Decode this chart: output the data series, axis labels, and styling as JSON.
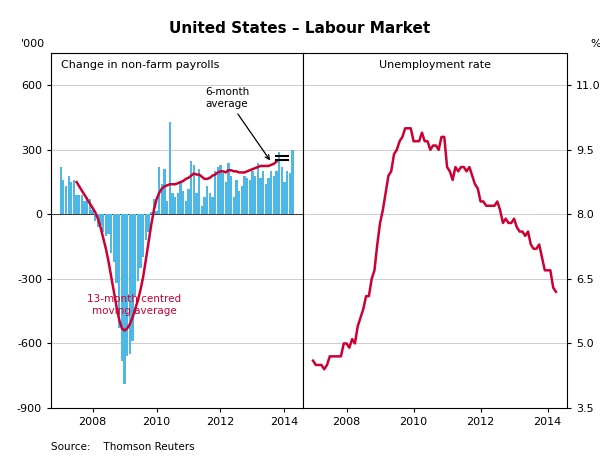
{
  "title": "United States – Labour Market",
  "left_panel_title": "Change in non-farm payrolls",
  "right_panel_title": "Unemployment rate",
  "left_ylabel": "'000",
  "right_ylabel": "%",
  "left_ylim": [
    -900,
    750
  ],
  "right_ylim": [
    3.5,
    11.75
  ],
  "left_yticks": [
    -900,
    -600,
    -300,
    0,
    300,
    600
  ],
  "right_yticks": [
    3.5,
    5.0,
    6.5,
    8.0,
    9.5,
    11.0
  ],
  "left_ytick_labels": [
    "-900",
    "-600",
    "-300",
    "0",
    "300",
    "600"
  ],
  "right_ytick_labels": [
    "3.5",
    "5.0",
    "6.5",
    "8.0",
    "9.5",
    "11.0"
  ],
  "source": "Source:    Thomson Reuters",
  "bar_color": "#4db8e8",
  "ma_color": "#cc0033",
  "background_color": "#ffffff",
  "grid_color": "#bbbbbb",
  "nfp_dates_monthly": [
    2007.0,
    2007.083,
    2007.167,
    2007.25,
    2007.333,
    2007.417,
    2007.5,
    2007.583,
    2007.667,
    2007.75,
    2007.833,
    2007.917,
    2008.0,
    2008.083,
    2008.167,
    2008.25,
    2008.333,
    2008.417,
    2008.5,
    2008.583,
    2008.667,
    2008.75,
    2008.833,
    2008.917,
    2009.0,
    2009.083,
    2009.167,
    2009.25,
    2009.333,
    2009.417,
    2009.5,
    2009.583,
    2009.667,
    2009.75,
    2009.833,
    2009.917,
    2010.0,
    2010.083,
    2010.167,
    2010.25,
    2010.333,
    2010.417,
    2010.5,
    2010.583,
    2010.667,
    2010.75,
    2010.833,
    2010.917,
    2011.0,
    2011.083,
    2011.167,
    2011.25,
    2011.333,
    2011.417,
    2011.5,
    2011.583,
    2011.667,
    2011.75,
    2011.833,
    2011.917,
    2012.0,
    2012.083,
    2012.167,
    2012.25,
    2012.333,
    2012.417,
    2012.5,
    2012.583,
    2012.667,
    2012.75,
    2012.833,
    2012.917,
    2013.0,
    2013.083,
    2013.167,
    2013.25,
    2013.333,
    2013.417,
    2013.5,
    2013.583,
    2013.667,
    2013.75,
    2013.833,
    2013.917,
    2014.0,
    2014.083,
    2014.167,
    2014.25
  ],
  "nfp_values": [
    220,
    160,
    130,
    180,
    150,
    160,
    90,
    90,
    90,
    60,
    80,
    70,
    20,
    -30,
    -60,
    -50,
    -80,
    -100,
    -90,
    -180,
    -220,
    -320,
    -530,
    -680,
    -790,
    -660,
    -650,
    -590,
    -380,
    -310,
    -250,
    -200,
    -120,
    -80,
    10,
    70,
    16,
    220,
    140,
    210,
    60,
    430,
    100,
    80,
    100,
    150,
    110,
    60,
    120,
    250,
    230,
    100,
    210,
    40,
    80,
    130,
    100,
    80,
    200,
    220,
    230,
    190,
    150,
    240,
    180,
    80,
    160,
    110,
    130,
    180,
    170,
    160,
    200,
    180,
    240,
    170,
    200,
    140,
    170,
    200,
    180,
    200,
    290,
    220,
    150,
    200,
    190,
    300
  ],
  "ma13_dates": [
    2007.5,
    2007.583,
    2007.667,
    2007.75,
    2007.833,
    2007.917,
    2008.0,
    2008.083,
    2008.167,
    2008.25,
    2008.333,
    2008.417,
    2008.5,
    2008.583,
    2008.667,
    2008.75,
    2008.833,
    2008.917,
    2009.0,
    2009.083,
    2009.167,
    2009.25,
    2009.333,
    2009.417,
    2009.5,
    2009.583,
    2009.667,
    2009.75,
    2009.833,
    2009.917,
    2010.0,
    2010.083,
    2010.167,
    2010.25,
    2010.333,
    2010.417,
    2010.5,
    2010.583,
    2010.667,
    2010.75,
    2010.833,
    2010.917,
    2011.0,
    2011.083,
    2011.167,
    2011.25,
    2011.333,
    2011.417,
    2011.5,
    2011.583,
    2011.667,
    2011.75,
    2011.833,
    2011.917,
    2012.0,
    2012.083,
    2012.167,
    2012.25,
    2012.333,
    2012.417,
    2012.5,
    2012.583,
    2012.667,
    2012.75,
    2012.833,
    2012.917,
    2013.0,
    2013.083,
    2013.167,
    2013.25,
    2013.333,
    2013.417,
    2013.5,
    2013.583,
    2013.667,
    2013.75
  ],
  "ma13_values": [
    150,
    130,
    110,
    90,
    70,
    50,
    30,
    10,
    -20,
    -60,
    -110,
    -160,
    -220,
    -290,
    -360,
    -430,
    -490,
    -530,
    -540,
    -530,
    -510,
    -480,
    -440,
    -400,
    -350,
    -290,
    -210,
    -130,
    -50,
    20,
    70,
    100,
    120,
    130,
    135,
    140,
    140,
    140,
    145,
    150,
    155,
    165,
    170,
    180,
    190,
    185,
    185,
    175,
    165,
    165,
    170,
    180,
    185,
    195,
    200,
    200,
    195,
    205,
    205,
    200,
    200,
    195,
    195,
    195,
    200,
    205,
    210,
    215,
    220,
    225,
    225,
    225,
    225,
    230,
    235,
    245
  ],
  "unemp_dates": [
    2007.0,
    2007.083,
    2007.167,
    2007.25,
    2007.333,
    2007.417,
    2007.5,
    2007.583,
    2007.667,
    2007.75,
    2007.833,
    2007.917,
    2008.0,
    2008.083,
    2008.167,
    2008.25,
    2008.333,
    2008.417,
    2008.5,
    2008.583,
    2008.667,
    2008.75,
    2008.833,
    2008.917,
    2009.0,
    2009.083,
    2009.167,
    2009.25,
    2009.333,
    2009.417,
    2009.5,
    2009.583,
    2009.667,
    2009.75,
    2009.833,
    2009.917,
    2010.0,
    2010.083,
    2010.167,
    2010.25,
    2010.333,
    2010.417,
    2010.5,
    2010.583,
    2010.667,
    2010.75,
    2010.833,
    2010.917,
    2011.0,
    2011.083,
    2011.167,
    2011.25,
    2011.333,
    2011.417,
    2011.5,
    2011.583,
    2011.667,
    2011.75,
    2011.833,
    2011.917,
    2012.0,
    2012.083,
    2012.167,
    2012.25,
    2012.333,
    2012.417,
    2012.5,
    2012.583,
    2012.667,
    2012.75,
    2012.833,
    2012.917,
    2013.0,
    2013.083,
    2013.167,
    2013.25,
    2013.333,
    2013.417,
    2013.5,
    2013.583,
    2013.667,
    2013.75,
    2013.833,
    2013.917,
    2014.0,
    2014.083,
    2014.167,
    2014.25
  ],
  "unemp_values": [
    4.6,
    4.5,
    4.5,
    4.5,
    4.4,
    4.5,
    4.7,
    4.7,
    4.7,
    4.7,
    4.7,
    5.0,
    5.0,
    4.9,
    5.1,
    5.0,
    5.4,
    5.6,
    5.8,
    6.1,
    6.1,
    6.5,
    6.7,
    7.3,
    7.8,
    8.1,
    8.5,
    8.9,
    9.0,
    9.4,
    9.5,
    9.7,
    9.8,
    10.0,
    10.0,
    10.0,
    9.7,
    9.7,
    9.7,
    9.9,
    9.7,
    9.7,
    9.5,
    9.6,
    9.6,
    9.5,
    9.8,
    9.8,
    9.1,
    9.0,
    8.8,
    9.1,
    9.0,
    9.1,
    9.1,
    9.0,
    9.1,
    8.9,
    8.7,
    8.6,
    8.3,
    8.3,
    8.2,
    8.2,
    8.2,
    8.2,
    8.3,
    8.1,
    7.8,
    7.9,
    7.8,
    7.8,
    7.9,
    7.7,
    7.6,
    7.6,
    7.5,
    7.6,
    7.3,
    7.2,
    7.2,
    7.3,
    7.0,
    6.7,
    6.7,
    6.7,
    6.3,
    6.2
  ],
  "xticks": [
    2008,
    2010,
    2012,
    2014
  ],
  "left_xlim": [
    2006.7,
    2014.58
  ],
  "right_xlim": [
    2006.7,
    2014.58
  ]
}
